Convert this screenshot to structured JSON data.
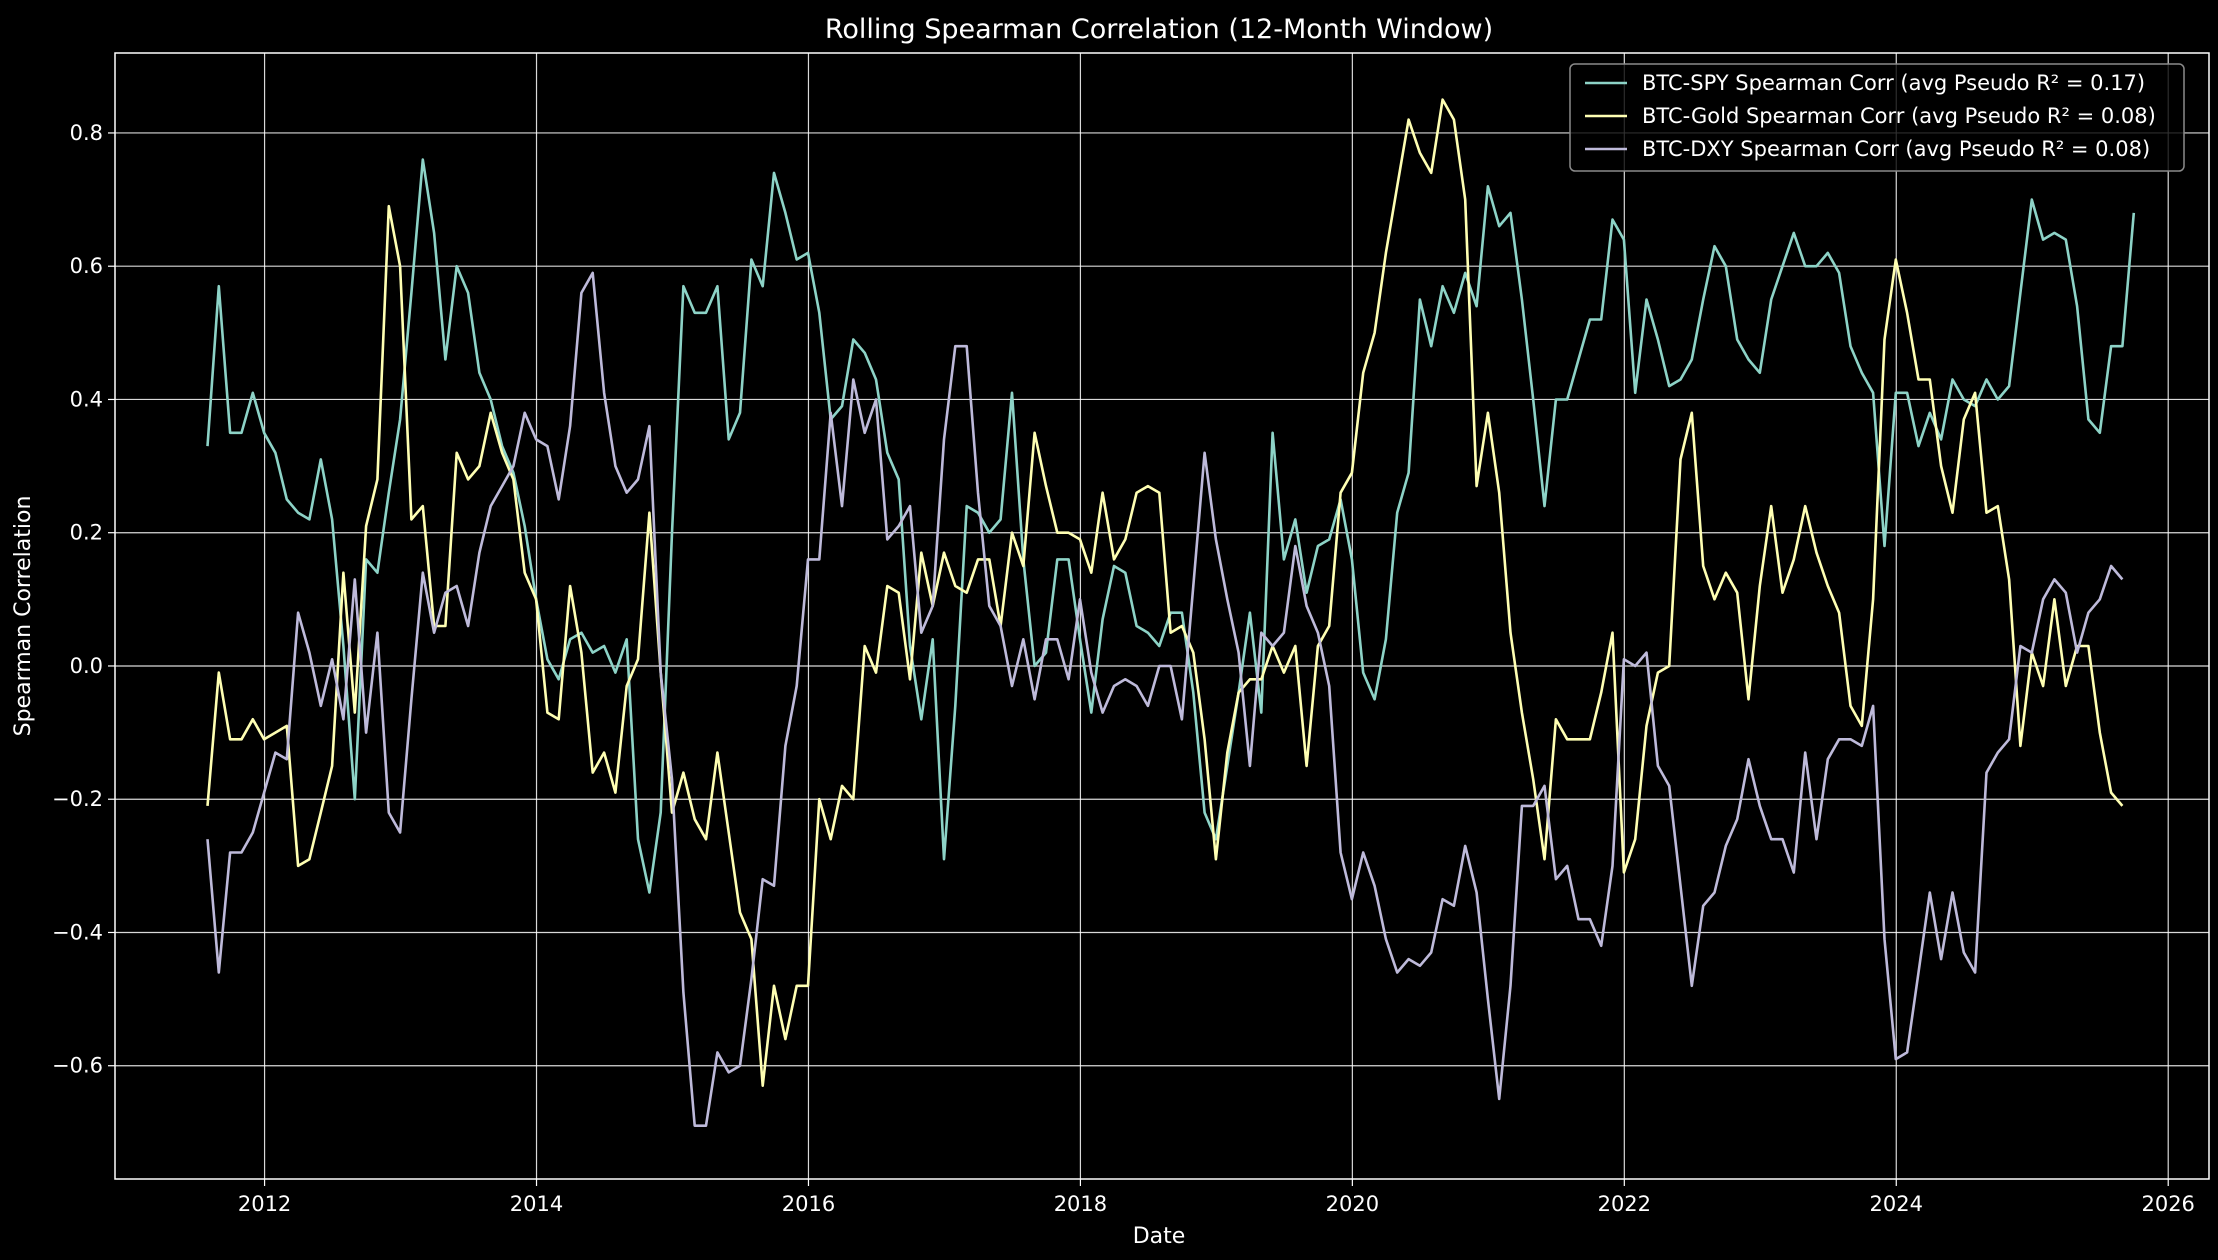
{
  "chart_data": {
    "type": "line",
    "title": "Rolling Spearman Correlation (12-Month Window)",
    "xlabel": "Date",
    "ylabel": "Spearman Correlation",
    "xlim": [
      2010.9,
      2026.3
    ],
    "ylim": [
      -0.77,
      0.92
    ],
    "x_ticks": [
      2012,
      2014,
      2016,
      2018,
      2020,
      2022,
      2024,
      2026
    ],
    "y_ticks": [
      -0.6,
      -0.4,
      -0.2,
      0.0,
      0.2,
      0.4,
      0.6,
      0.8
    ],
    "y_tick_labels": [
      "−0.6",
      "−0.4",
      "−0.2",
      "0.0",
      "0.2",
      "0.4",
      "0.6",
      "0.8"
    ],
    "x_tick_labels": [
      "2012",
      "2014",
      "2016",
      "2018",
      "2020",
      "2022",
      "2024",
      "2026"
    ],
    "grid": true,
    "legend_position": "top-right",
    "x_start": 2011.58,
    "x_step": 0.0833333,
    "series": [
      {
        "name": "BTC-SPY Spearman Corr (avg Pseudo R² = 0.17)",
        "color": "#8dd3c7",
        "values": [
          0.33,
          0.57,
          0.35,
          0.35,
          0.41,
          0.35,
          0.32,
          0.25,
          0.23,
          0.22,
          0.31,
          0.22,
          0.03,
          -0.2,
          0.16,
          0.14,
          0.26,
          0.37,
          0.56,
          0.76,
          0.65,
          0.46,
          0.6,
          0.56,
          0.44,
          0.4,
          0.33,
          0.29,
          0.21,
          0.1,
          0.01,
          -0.02,
          0.04,
          0.05,
          0.02,
          0.03,
          -0.01,
          0.04,
          -0.26,
          -0.34,
          -0.22,
          0.2,
          0.57,
          0.53,
          0.53,
          0.57,
          0.34,
          0.38,
          0.61,
          0.57,
          0.74,
          0.68,
          0.61,
          0.62,
          0.53,
          0.37,
          0.39,
          0.49,
          0.47,
          0.43,
          0.32,
          0.28,
          0.03,
          -0.08,
          0.04,
          -0.29,
          -0.06,
          0.24,
          0.23,
          0.2,
          0.22,
          0.41,
          0.16,
          0.0,
          0.02,
          0.16,
          0.16,
          0.04,
          -0.07,
          0.07,
          0.15,
          0.14,
          0.06,
          0.05,
          0.03,
          0.08,
          0.08,
          -0.04,
          -0.22,
          -0.26,
          -0.15,
          -0.04,
          0.08,
          -0.07,
          0.35,
          0.16,
          0.22,
          0.11,
          0.18,
          0.19,
          0.25,
          0.16,
          -0.01,
          -0.05,
          0.04,
          0.23,
          0.29,
          0.55,
          0.48,
          0.57,
          0.53,
          0.59,
          0.54,
          0.72,
          0.66,
          0.68,
          0.55,
          0.4,
          0.24,
          0.4,
          0.4,
          0.46,
          0.52,
          0.52,
          0.67,
          0.64,
          0.41,
          0.55,
          0.49,
          0.42,
          0.43,
          0.46,
          0.55,
          0.63,
          0.6,
          0.49,
          0.46,
          0.44,
          0.55,
          0.6,
          0.65,
          0.6,
          0.6,
          0.62,
          0.59,
          0.48,
          0.44,
          0.41,
          0.18,
          0.41,
          0.41,
          0.33,
          0.38,
          0.34,
          0.43,
          0.4,
          0.39,
          0.43,
          0.4,
          0.42,
          0.56,
          0.7,
          0.64,
          0.65,
          0.64,
          0.54,
          0.37,
          0.35,
          0.48,
          0.48,
          0.68
        ]
      },
      {
        "name": "BTC-Gold Spearman Corr (avg Pseudo R² = 0.08)",
        "color": "#ffffb3",
        "values": [
          -0.21,
          -0.01,
          -0.11,
          -0.11,
          -0.08,
          -0.11,
          -0.1,
          -0.09,
          -0.3,
          -0.29,
          -0.22,
          -0.15,
          0.14,
          -0.07,
          0.21,
          0.28,
          0.69,
          0.6,
          0.22,
          0.24,
          0.06,
          0.06,
          0.32,
          0.28,
          0.3,
          0.38,
          0.32,
          0.28,
          0.14,
          0.1,
          -0.07,
          -0.08,
          0.12,
          0.02,
          -0.16,
          -0.13,
          -0.19,
          -0.03,
          0.01,
          0.23,
          -0.01,
          -0.22,
          -0.16,
          -0.23,
          -0.26,
          -0.13,
          -0.25,
          -0.37,
          -0.41,
          -0.63,
          -0.48,
          -0.56,
          -0.48,
          -0.48,
          -0.2,
          -0.26,
          -0.18,
          -0.2,
          0.03,
          -0.01,
          0.12,
          0.11,
          -0.02,
          0.17,
          0.09,
          0.17,
          0.12,
          0.11,
          0.16,
          0.16,
          0.06,
          0.2,
          0.15,
          0.35,
          0.27,
          0.2,
          0.2,
          0.19,
          0.14,
          0.26,
          0.16,
          0.19,
          0.26,
          0.27,
          0.26,
          0.05,
          0.06,
          0.02,
          -0.11,
          -0.29,
          -0.13,
          -0.04,
          -0.02,
          -0.02,
          0.03,
          -0.01,
          0.03,
          -0.15,
          0.03,
          0.06,
          0.26,
          0.29,
          0.44,
          0.5,
          0.62,
          0.72,
          0.82,
          0.77,
          0.74,
          0.85,
          0.82,
          0.7,
          0.27,
          0.38,
          0.26,
          0.05,
          -0.07,
          -0.17,
          -0.29,
          -0.08,
          -0.11,
          -0.11,
          -0.11,
          -0.04,
          0.05,
          -0.31,
          -0.26,
          -0.09,
          -0.01,
          0.0,
          0.31,
          0.38,
          0.15,
          0.1,
          0.14,
          0.11,
          -0.05,
          0.12,
          0.24,
          0.11,
          0.16,
          0.24,
          0.17,
          0.12,
          0.08,
          -0.06,
          -0.09,
          0.1,
          0.49,
          0.61,
          0.53,
          0.43,
          0.43,
          0.3,
          0.23,
          0.37,
          0.41,
          0.23,
          0.24,
          0.13,
          -0.12,
          0.02,
          -0.03,
          0.1,
          -0.03,
          0.03,
          0.03,
          -0.1,
          -0.19,
          -0.21
        ]
      },
      {
        "name": "BTC-DXY Spearman Corr (avg Pseudo R² = 0.08)",
        "color": "#bebada",
        "values": [
          -0.26,
          -0.46,
          -0.28,
          -0.28,
          -0.25,
          -0.19,
          -0.13,
          -0.14,
          0.08,
          0.02,
          -0.06,
          0.01,
          -0.08,
          0.13,
          -0.1,
          0.05,
          -0.22,
          -0.25,
          -0.05,
          0.14,
          0.05,
          0.11,
          0.12,
          0.06,
          0.17,
          0.24,
          0.27,
          0.3,
          0.38,
          0.34,
          0.33,
          0.25,
          0.36,
          0.56,
          0.59,
          0.41,
          0.3,
          0.26,
          0.28,
          0.36,
          -0.01,
          -0.17,
          -0.49,
          -0.69,
          -0.69,
          -0.58,
          -0.61,
          -0.6,
          -0.47,
          -0.32,
          -0.33,
          -0.12,
          -0.03,
          0.16,
          0.16,
          0.38,
          0.24,
          0.43,
          0.35,
          0.4,
          0.19,
          0.21,
          0.24,
          0.05,
          0.09,
          0.34,
          0.48,
          0.48,
          0.26,
          0.09,
          0.06,
          -0.03,
          0.04,
          -0.05,
          0.04,
          0.04,
          -0.02,
          0.1,
          -0.01,
          -0.07,
          -0.03,
          -0.02,
          -0.03,
          -0.06,
          0.0,
          0.0,
          -0.08,
          0.12,
          0.32,
          0.19,
          0.1,
          0.02,
          -0.15,
          0.05,
          0.03,
          0.05,
          0.18,
          0.09,
          0.05,
          -0.03,
          -0.28,
          -0.35,
          -0.28,
          -0.33,
          -0.41,
          -0.46,
          -0.44,
          -0.45,
          -0.43,
          -0.35,
          -0.36,
          -0.27,
          -0.34,
          -0.5,
          -0.65,
          -0.48,
          -0.21,
          -0.21,
          -0.18,
          -0.32,
          -0.3,
          -0.38,
          -0.38,
          -0.42,
          -0.3,
          0.01,
          0.0,
          0.02,
          -0.15,
          -0.18,
          -0.33,
          -0.48,
          -0.36,
          -0.34,
          -0.27,
          -0.23,
          -0.14,
          -0.21,
          -0.26,
          -0.26,
          -0.31,
          -0.13,
          -0.26,
          -0.14,
          -0.11,
          -0.11,
          -0.12,
          -0.06,
          -0.41,
          -0.59,
          -0.58,
          -0.46,
          -0.34,
          -0.44,
          -0.34,
          -0.43,
          -0.46,
          -0.16,
          -0.13,
          -0.11,
          0.03,
          0.02,
          0.1,
          0.13,
          0.11,
          0.02,
          0.08,
          0.1,
          0.15,
          0.13
        ]
      }
    ]
  }
}
